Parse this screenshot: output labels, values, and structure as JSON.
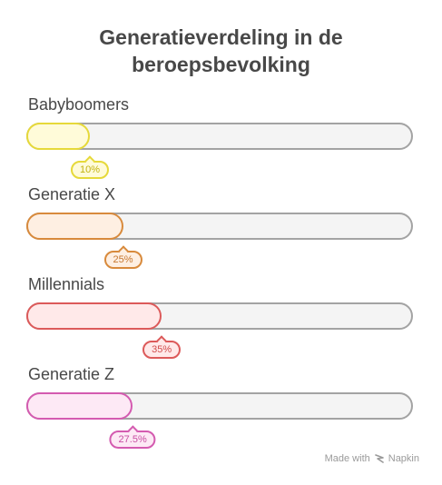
{
  "chart_data": {
    "type": "bar",
    "orientation": "horizontal",
    "title_lines": [
      "Generatieverdeling in de",
      "beroepsbevolking"
    ],
    "categories": [
      "Babyboomers",
      "Generatie X",
      "Millennials",
      "Generatie Z"
    ],
    "values": [
      10,
      25,
      35,
      27.5
    ],
    "value_labels": [
      "10%",
      "25%",
      "35%",
      "27.5%"
    ],
    "xlim": [
      0,
      100
    ],
    "grid": false,
    "legend": "none",
    "colors": {
      "fills": [
        "#fffbd9",
        "#feefe2",
        "#ffe9e9",
        "#fde9f5"
      ],
      "strokes": [
        "#e6d93a",
        "#d88a3c",
        "#dc5a5a",
        "#d45bb0"
      ],
      "badge_text": [
        "#c2b20f",
        "#c67730",
        "#d04c4c",
        "#c84ea3"
      ],
      "track": "#f4f4f4",
      "track_stroke": "#a3a3a3"
    }
  },
  "footer": {
    "made_with": "Made with",
    "brand": "Napkin",
    "brand_icon": "napkin-logo-icon"
  }
}
